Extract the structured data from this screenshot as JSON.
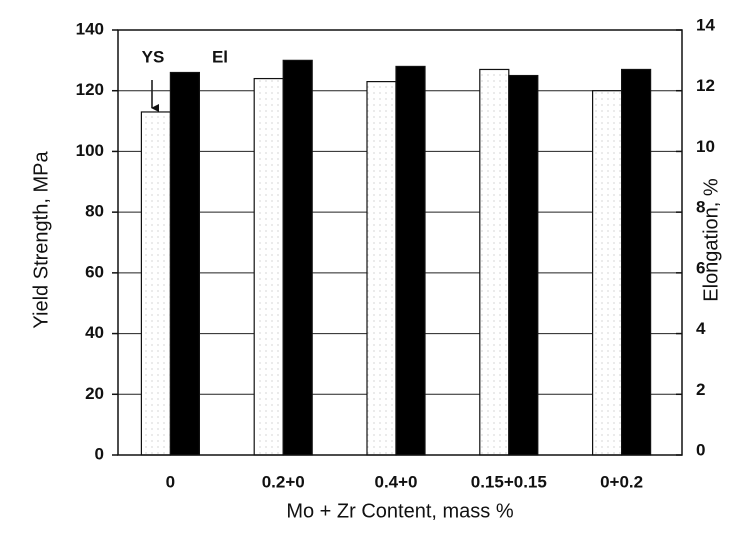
{
  "chart_data": {
    "type": "bar",
    "x_label": "Mo + Zr Content, mass %",
    "y_label": "Yield Strength, MPa",
    "y2_label": "Elongation, %",
    "categories": [
      "0",
      "0.2+0",
      "0.4+0",
      "0.15+0.15",
      "0+0.2"
    ],
    "series": [
      {
        "name": "YS",
        "color": "#ffffff",
        "values": [
          113,
          124,
          123,
          127,
          120
        ]
      },
      {
        "name": "El",
        "color": "#000000",
        "axis": "y2",
        "values": [
          12.6,
          13.0,
          12.8,
          12.5,
          12.7
        ]
      }
    ],
    "ylim": [
      0,
      140
    ],
    "yticks": [
      0,
      20,
      40,
      60,
      80,
      100,
      120,
      140
    ],
    "y2lim": [
      0,
      14
    ],
    "y2ticks": [
      0,
      2,
      4,
      6,
      8,
      10,
      12,
      14
    ],
    "grid": true
  }
}
